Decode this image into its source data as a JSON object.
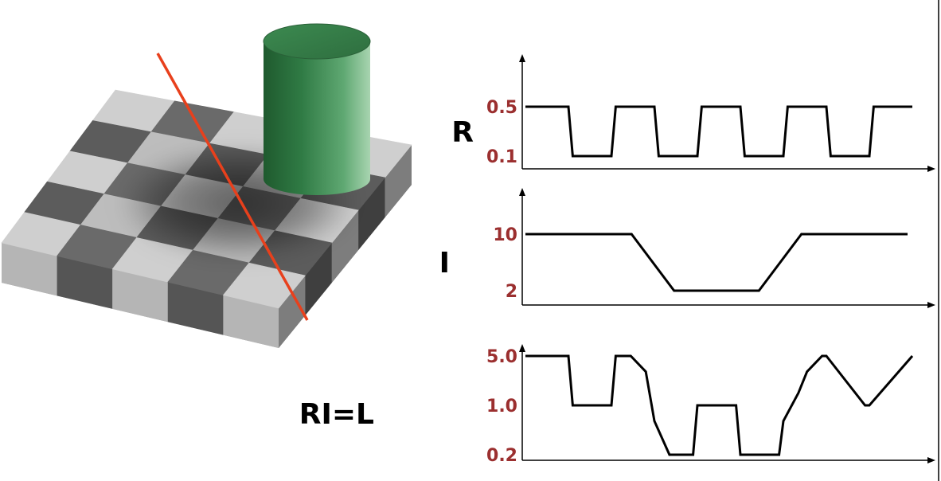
{
  "illusion": {
    "name": "checker-shadow-illusion",
    "cylinder_color": "#3f7f4f",
    "scanline_color": "#e8401c"
  },
  "colors": {
    "tick_label": "#9b2f2f",
    "axis_label": "#000000",
    "signal": "#000000",
    "background": "#ffffff"
  },
  "chart_data": [
    {
      "type": "line",
      "title": "",
      "ylabel": "R",
      "ytick_labels": [
        "0.5",
        "0.1"
      ],
      "levels": [
        0.5,
        0.1
      ],
      "x": [
        0,
        1,
        1.1,
        2.0,
        2.1,
        3.0,
        3.1,
        4.0,
        4.1,
        5.0,
        5.1,
        6.0,
        6.1,
        7.0,
        7.1,
        8.0,
        8.1,
        9.0
      ],
      "values": [
        0.5,
        0.5,
        0.1,
        0.1,
        0.5,
        0.5,
        0.1,
        0.1,
        0.5,
        0.5,
        0.1,
        0.1,
        0.5,
        0.5,
        0.1,
        0.1,
        0.5,
        0.5
      ]
    },
    {
      "type": "line",
      "title": "",
      "ylabel": "I",
      "ytick_labels": [
        "10",
        "2"
      ],
      "levels": [
        10,
        2
      ],
      "x": [
        0,
        2.5,
        3.5,
        5.5,
        6.5,
        9.0
      ],
      "values": [
        10,
        10,
        2,
        2,
        10,
        10
      ]
    },
    {
      "type": "line",
      "title": "",
      "ylabel": "RI=L",
      "ytick_labels": [
        "5.0",
        "1.0",
        "0.2"
      ],
      "levels": [
        5.0,
        1.0,
        0.2
      ],
      "x": [
        0,
        1.0,
        1.1,
        2.0,
        2.1,
        2.45,
        2.8,
        3.0,
        3.35,
        3.9,
        4.0,
        4.9,
        5.0,
        5.9,
        6.0,
        6.35,
        6.55,
        6.9,
        7.0,
        7.9,
        8.0,
        9.0
      ],
      "values": [
        5.0,
        5.0,
        1.0,
        1.0,
        5.0,
        5.0,
        3.0,
        0.6,
        0.2,
        0.2,
        1.0,
        1.0,
        0.2,
        0.2,
        0.6,
        1.5,
        3.0,
        5.0,
        5.0,
        1.0,
        1.0,
        5.0
      ]
    }
  ]
}
